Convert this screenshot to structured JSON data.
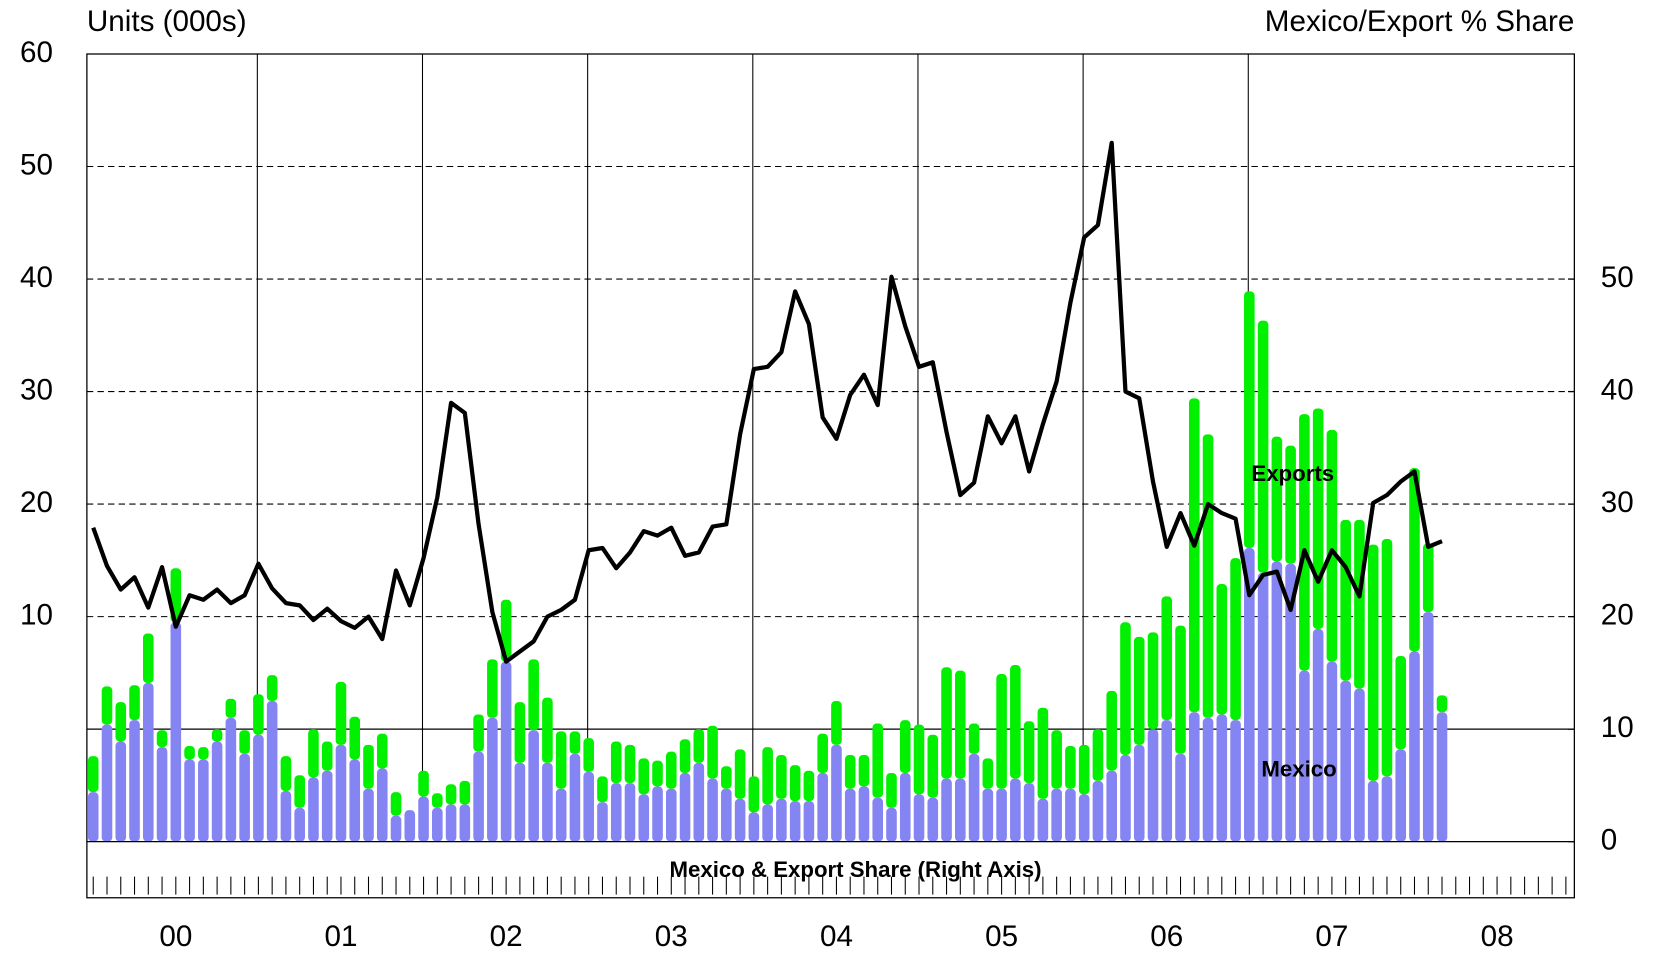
{
  "chart_data": {
    "type": "bar-line",
    "ylabel": "Units (000s)",
    "y2label": "Mexico/Export % Share",
    "annotation": "Mexico & Export Share (Right Axis)",
    "xtick_labels": [
      "00",
      "01",
      "02",
      "03",
      "04",
      "05",
      "06",
      "07",
      "08"
    ],
    "ylim": [
      -10,
      60
    ],
    "yticks": [
      10,
      20,
      30,
      40,
      50,
      60
    ],
    "y2lim": [
      0,
      70
    ],
    "y2ticks": [
      0,
      10,
      20,
      30,
      40,
      50
    ],
    "grid": true,
    "bar_series": [
      {
        "name": "Mexico",
        "color": "#8484f2",
        "axis": "y2",
        "values": [
          4.4,
          10.4,
          8.9,
          10.8,
          14.1,
          8.4,
          19.5,
          7.3,
          7.3,
          8.9,
          11.0,
          7.8,
          9.5,
          12.5,
          4.5,
          3.0,
          5.7,
          6.3,
          8.6,
          7.3,
          4.7,
          6.5,
          2.3,
          2.8,
          4.0,
          3.0,
          3.3,
          3.3,
          8.0,
          11.0,
          16.0,
          7.0,
          9.9,
          7.0,
          4.7,
          7.8,
          6.2,
          3.5,
          5.2,
          5.2,
          4.2,
          4.9,
          4.7,
          6.1,
          7.0,
          5.6,
          4.7,
          3.8,
          2.6,
          3.3,
          3.8,
          3.6,
          3.6,
          6.1,
          8.6,
          4.7,
          4.9,
          3.9,
          3.0,
          6.1,
          4.2,
          3.9,
          5.6,
          5.6,
          7.8,
          4.7,
          4.7,
          5.6,
          5.2,
          3.8,
          4.7,
          4.7,
          4.2,
          5.4,
          6.3,
          7.7,
          8.6,
          10.0,
          10.8,
          7.8,
          11.5,
          11.0,
          11.3,
          10.8,
          26.1,
          23.9,
          24.9,
          24.7,
          15.2,
          18.9,
          16.0,
          14.3,
          13.6,
          5.4,
          5.8,
          8.2,
          16.9,
          20.4,
          11.5
        ]
      },
      {
        "name": "Exports",
        "color": "#00f000",
        "axis": "y2",
        "values": [
          3.2,
          3.4,
          3.5,
          3.1,
          4.4,
          1.5,
          4.8,
          1.2,
          1.1,
          1.1,
          1.7,
          2.1,
          3.6,
          2.3,
          3.1,
          2.9,
          4.3,
          2.6,
          5.6,
          3.8,
          3.9,
          3.1,
          2.1,
          0,
          2.3,
          1.3,
          1.8,
          2.1,
          3.3,
          5.2,
          5.5,
          5.4,
          6.3,
          5.8,
          5.1,
          2.0,
          3.0,
          2.3,
          3.7,
          3.4,
          3.2,
          2.3,
          3.3,
          3.0,
          3.0,
          4.7,
          2.0,
          4.4,
          3.2,
          5.1,
          3.9,
          3.2,
          2.7,
          3.5,
          3.9,
          3.0,
          2.8,
          6.6,
          3.1,
          4.7,
          6.2,
          5.6,
          9.9,
          9.6,
          2.7,
          2.7,
          10.2,
          10.1,
          5.5,
          8.1,
          5.2,
          3.8,
          4.4,
          4.6,
          7.1,
          11.8,
          9.6,
          8.6,
          11.0,
          11.4,
          27.9,
          25.2,
          11.6,
          14.4,
          22.8,
          22.4,
          11.1,
          10.5,
          22.8,
          19.6,
          20.6,
          14.3,
          15.0,
          21.0,
          21.1,
          8.3,
          16.3,
          6.1,
          1.5
        ]
      }
    ],
    "line_series": {
      "color": "#000000",
      "values": [
        17.9,
        14.5,
        12.4,
        13.5,
        10.8,
        14.4,
        9.1,
        11.9,
        11.5,
        12.4,
        11.2,
        11.9,
        14.7,
        12.5,
        11.2,
        11.0,
        9.7,
        10.7,
        9.6,
        9.0,
        10.0,
        8.0,
        14.1,
        11.0,
        15.2,
        20.6,
        29.0,
        28.1,
        18.2,
        10.4,
        6.0,
        6.9,
        7.8,
        10.0,
        10.6,
        11.5,
        15.9,
        16.1,
        14.3,
        15.7,
        17.6,
        17.2,
        17.9,
        15.4,
        15.7,
        18.0,
        18.2,
        26.2,
        32.0,
        32.2,
        33.5,
        38.9,
        36.0,
        27.7,
        25.8,
        29.7,
        31.5,
        28.8,
        40.2,
        35.8,
        32.2,
        32.6,
        26.4,
        20.8,
        21.9,
        27.8,
        25.4,
        27.8,
        22.9,
        27.1,
        30.9,
        37.9,
        43.7,
        44.8,
        52.1,
        30.0,
        29.4,
        22.0,
        16.2,
        19.2,
        16.3,
        20.0,
        19.2,
        18.7,
        11.9,
        13.7,
        14.0,
        10.6,
        15.9,
        13.1,
        15.9,
        14.4,
        11.8,
        20.1,
        20.8,
        22.0,
        22.9,
        16.2,
        16.7
      ]
    }
  }
}
